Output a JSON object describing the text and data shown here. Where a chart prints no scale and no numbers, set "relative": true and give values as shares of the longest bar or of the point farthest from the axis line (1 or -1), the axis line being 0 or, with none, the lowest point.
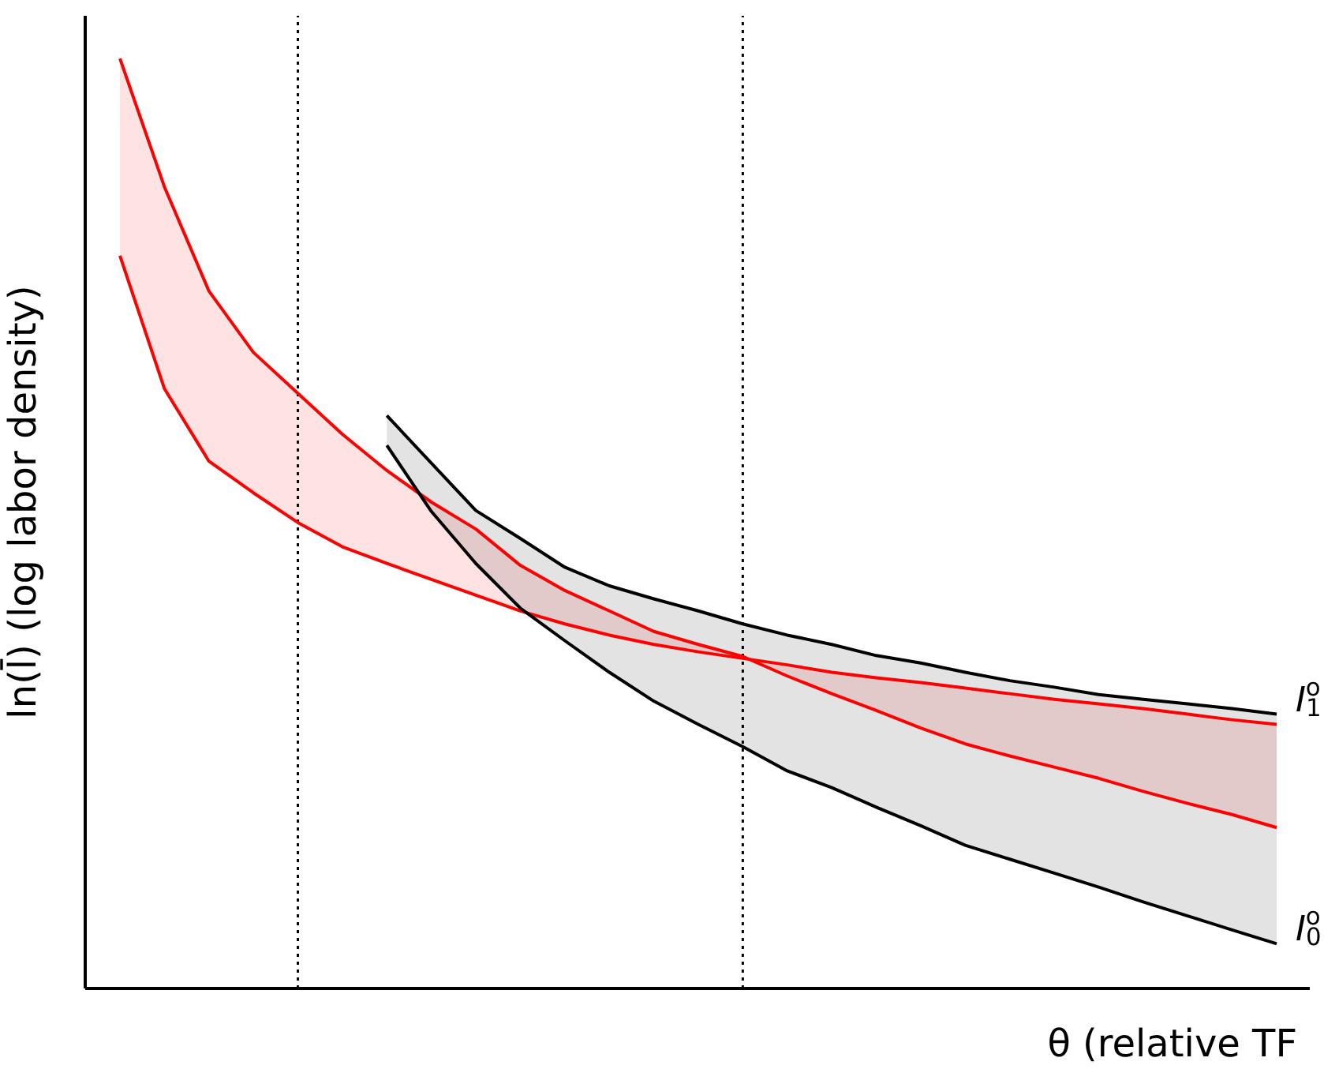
{
  "chart_data": {
    "type": "line",
    "relative": true,
    "xlabel": "θ (relative TF",
    "ylabel": "ln(l̄) (log labor density)",
    "marker": "none",
    "line_style": "solid",
    "categories": [
      null,
      null,
      null,
      null,
      null,
      null,
      null,
      null,
      null,
      null,
      null,
      null,
      null,
      null,
      null,
      null,
      null,
      null,
      null,
      null,
      null,
      null,
      null,
      null,
      null,
      null,
      null
    ],
    "series": [
      {
        "color": "#ff0000",
        "values": [
          1.0,
          0.862,
          0.75,
          0.684,
          0.64,
          0.596,
          0.557,
          0.523,
          0.494,
          0.455,
          0.428,
          0.406,
          0.384,
          0.37,
          0.357,
          0.336,
          0.317,
          0.299,
          0.28,
          0.263,
          0.25,
          0.238,
          0.226,
          0.212,
          0.199,
          0.187,
          0.173
        ],
        "upper": [
          1.0,
          0.862,
          0.75,
          0.684,
          0.64,
          0.596,
          0.557,
          0.523,
          0.494,
          0.455,
          0.428,
          0.406,
          0.384,
          0.37,
          0.357,
          0.336,
          0.317,
          0.299,
          0.28,
          0.263,
          0.25,
          0.238,
          0.226,
          0.212,
          0.199,
          0.187,
          0.173
        ],
        "lower": [
          0.788,
          0.645,
          0.567,
          0.533,
          0.501,
          0.475,
          0.457,
          0.44,
          0.423,
          0.406,
          0.392,
          0.38,
          0.37,
          0.362,
          0.355,
          0.348,
          0.34,
          0.334,
          0.329,
          0.323,
          0.317,
          0.311,
          0.306,
          0.301,
          0.295,
          0.289,
          0.284
        ]
      },
      {
        "color": "#ff0000",
        "values": [
          0.788,
          0.645,
          0.567,
          0.533,
          0.501,
          0.475,
          0.457,
          0.44,
          0.423,
          0.406,
          0.392,
          0.38,
          0.37,
          0.362,
          0.355,
          0.348,
          0.34,
          0.334,
          0.329,
          0.323,
          0.317,
          0.311,
          0.306,
          0.301,
          0.295,
          0.289,
          0.284
        ]
      },
      {
        "name": "I$_{1}$$^{o}$",
        "color": "#000000",
        "values": [
          null,
          null,
          null,
          null,
          null,
          null,
          0.616,
          0.565,
          0.514,
          0.484,
          0.453,
          0.433,
          0.419,
          0.406,
          0.392,
          0.38,
          0.37,
          0.358,
          0.35,
          0.34,
          0.331,
          0.324,
          0.316,
          0.311,
          0.306,
          0.301,
          0.295
        ],
        "upper": [
          null,
          null,
          null,
          null,
          null,
          null,
          0.616,
          0.565,
          0.514,
          0.484,
          0.453,
          0.433,
          0.419,
          0.406,
          0.392,
          0.38,
          0.37,
          0.358,
          0.35,
          0.34,
          0.331,
          0.324,
          0.316,
          0.311,
          0.306,
          0.301,
          0.295
        ],
        "lower": [
          null,
          null,
          null,
          null,
          null,
          null,
          0.584,
          0.513,
          0.457,
          0.409,
          0.374,
          0.34,
          0.309,
          0.284,
          0.26,
          0.234,
          0.216,
          0.195,
          0.175,
          0.154,
          0.139,
          0.124,
          0.109,
          0.093,
          0.078,
          0.063,
          0.048
        ]
      },
      {
        "name": "I$_{0}$$^{o}$",
        "color": "#000000",
        "values": [
          null,
          null,
          null,
          null,
          null,
          null,
          0.584,
          0.513,
          0.457,
          0.409,
          0.374,
          0.34,
          0.309,
          0.284,
          0.26,
          0.234,
          0.216,
          0.195,
          0.175,
          0.154,
          0.139,
          0.124,
          0.109,
          0.093,
          0.078,
          0.063,
          0.048
        ]
      }
    ]
  }
}
